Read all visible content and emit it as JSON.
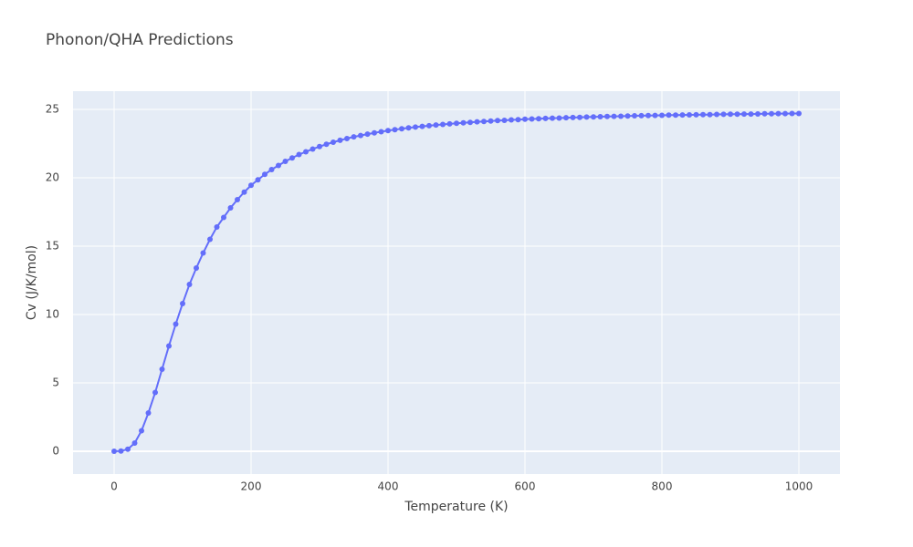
{
  "chart_data": {
    "type": "line",
    "title": "Phonon/QHA Predictions",
    "x_label": "Temperature (K)",
    "y_label": "Cv (J/K/mol)",
    "x": [
      0,
      10,
      20,
      30,
      40,
      50,
      60,
      70,
      80,
      90,
      100,
      110,
      120,
      130,
      140,
      150,
      160,
      170,
      180,
      190,
      200,
      210,
      220,
      230,
      240,
      250,
      260,
      270,
      280,
      290,
      300,
      310,
      320,
      330,
      340,
      350,
      360,
      370,
      380,
      390,
      400,
      410,
      420,
      430,
      440,
      450,
      460,
      470,
      480,
      490,
      500,
      510,
      520,
      530,
      540,
      550,
      560,
      570,
      580,
      590,
      600,
      610,
      620,
      630,
      640,
      650,
      660,
      670,
      680,
      690,
      700,
      710,
      720,
      730,
      740,
      750,
      760,
      770,
      780,
      790,
      800,
      810,
      820,
      830,
      840,
      850,
      860,
      870,
      880,
      890,
      900,
      910,
      920,
      930,
      940,
      950,
      960,
      970,
      980,
      990,
      1000
    ],
    "series": [
      {
        "name": "Cv",
        "color": "#636efa",
        "values": [
          0,
          0.02,
          0.15,
          0.6,
          1.5,
          2.8,
          4.3,
          6.0,
          7.7,
          9.3,
          10.8,
          12.2,
          13.4,
          14.5,
          15.5,
          16.4,
          17.1,
          17.8,
          18.4,
          18.95,
          19.45,
          19.85,
          20.25,
          20.6,
          20.9,
          21.2,
          21.45,
          21.7,
          21.9,
          22.1,
          22.28,
          22.45,
          22.6,
          22.74,
          22.87,
          22.99,
          23.09,
          23.19,
          23.28,
          23.37,
          23.45,
          23.52,
          23.58,
          23.65,
          23.71,
          23.76,
          23.81,
          23.86,
          23.9,
          23.94,
          23.98,
          24.02,
          24.05,
          24.09,
          24.12,
          24.15,
          24.18,
          24.2,
          24.23,
          24.25,
          24.28,
          24.3,
          24.32,
          24.34,
          24.36,
          24.37,
          24.39,
          24.41,
          24.42,
          24.44,
          24.45,
          24.47,
          24.48,
          24.49,
          24.5,
          24.52,
          24.53,
          24.54,
          24.55,
          24.56,
          24.57,
          24.58,
          24.58,
          24.59,
          24.6,
          24.61,
          24.62,
          24.62,
          24.63,
          24.64,
          24.65,
          24.65,
          24.66,
          24.66,
          24.67,
          24.68,
          24.68,
          24.69,
          24.69,
          24.7,
          24.7
        ]
      }
    ],
    "xlim": [
      -60,
      1060
    ],
    "ylim": [
      -1.667,
      26.333
    ],
    "xticks": [
      0,
      200,
      400,
      600,
      800,
      1000
    ],
    "yticks": [
      0,
      5,
      10,
      15,
      20,
      25
    ],
    "grid": true
  }
}
